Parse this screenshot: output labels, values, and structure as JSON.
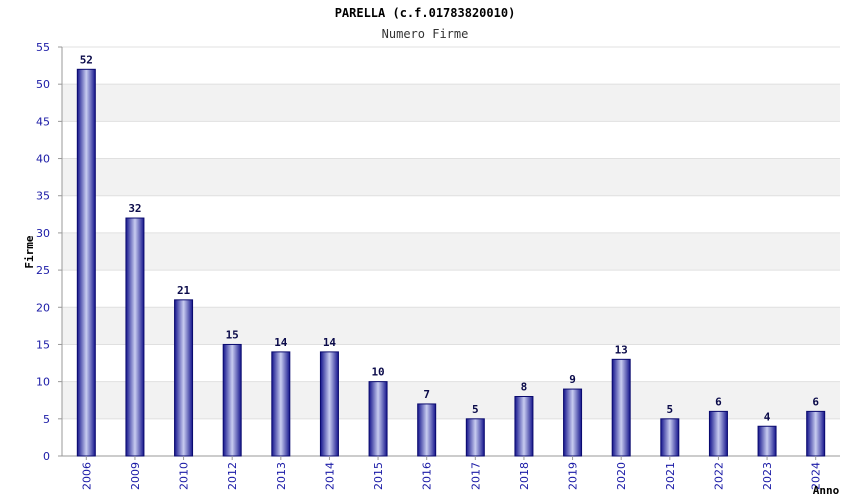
{
  "chart_data": {
    "type": "bar",
    "title": "PARELLA (c.f.01783820010)",
    "subtitle": "Numero Firme",
    "xlabel": "Anno",
    "ylabel": "Firme",
    "categories": [
      "2006",
      "2009",
      "2010",
      "2012",
      "2013",
      "2014",
      "2015",
      "2016",
      "2017",
      "2018",
      "2019",
      "2020",
      "2021",
      "2022",
      "2023",
      "2024"
    ],
    "values": [
      52,
      32,
      21,
      15,
      14,
      14,
      10,
      7,
      5,
      8,
      9,
      13,
      5,
      6,
      4,
      6
    ],
    "ylim": [
      0,
      55
    ],
    "yticks": [
      0,
      5,
      10,
      15,
      20,
      25,
      30,
      35,
      40,
      45,
      50,
      55
    ],
    "grid": true,
    "colors": {
      "bar_edge": "#0a0a6e",
      "bar_dark": "#14148c",
      "bar_light": "#c8ccf0",
      "band": "#f2f2f2",
      "tick_text": "#1a1aa6"
    }
  }
}
